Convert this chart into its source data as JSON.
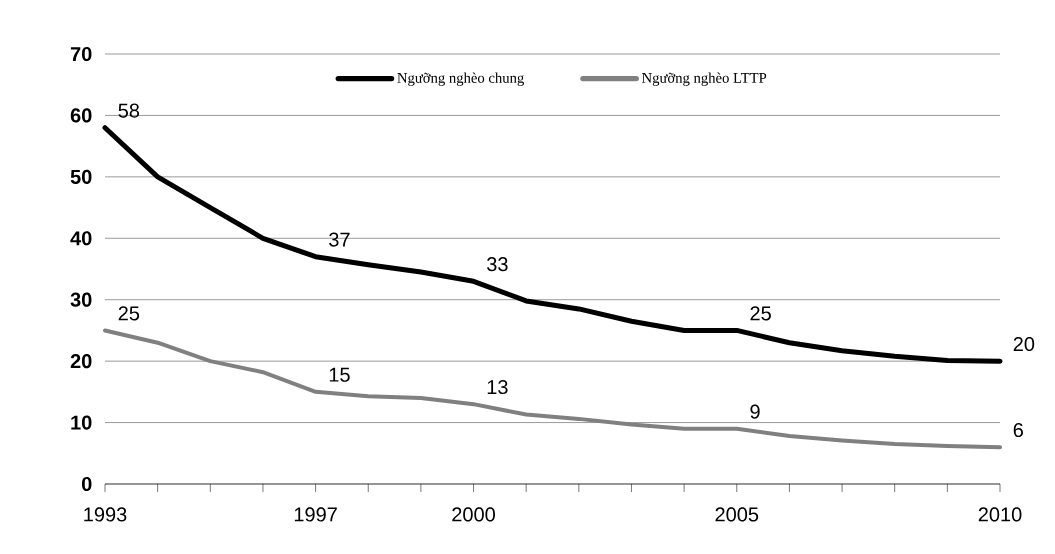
{
  "chart_data": {
    "type": "line",
    "x": [
      1993,
      1994,
      1995,
      1996,
      1997,
      1998,
      1999,
      2000,
      2001,
      2002,
      2003,
      2004,
      2005,
      2006,
      2007,
      2008,
      2009,
      2010
    ],
    "series": [
      {
        "name": "Ngưỡng nghèo chung",
        "color": "#000000",
        "values": [
          58,
          50,
          45,
          40,
          37,
          35.7,
          34.5,
          33,
          29.8,
          28.5,
          26.5,
          25,
          25,
          23,
          21.7,
          20.8,
          20.1,
          20
        ]
      },
      {
        "name": "Ngưỡng nghèo LTTP",
        "color": "#808080",
        "values": [
          25,
          23,
          20,
          18.2,
          15,
          14.3,
          14,
          13,
          11.3,
          10.6,
          9.7,
          9,
          9,
          7.8,
          7.1,
          6.5,
          6.2,
          6
        ]
      }
    ],
    "annotations": [
      {
        "text": "58",
        "x": 1993,
        "y": 58
      },
      {
        "text": "37",
        "x": 1997,
        "y": 37
      },
      {
        "text": "33",
        "x": 2000,
        "y": 33
      },
      {
        "text": "25",
        "x": 2005,
        "y": 25
      },
      {
        "text": "20",
        "x": 2010,
        "y": 20
      },
      {
        "text": "25",
        "x": 1993,
        "y": 25
      },
      {
        "text": "15",
        "x": 1997,
        "y": 15
      },
      {
        "text": "13",
        "x": 2000,
        "y": 13
      },
      {
        "text": "9",
        "x": 2005,
        "y": 9
      },
      {
        "text": "6",
        "x": 2010,
        "y": 6
      }
    ],
    "xlim": [
      1993,
      2010
    ],
    "xticks": [
      1993,
      {
        "value": 1994,
        "label": null
      },
      {
        "value": 1995,
        "label": null
      },
      {
        "value": 1996,
        "label": null
      },
      1997,
      {
        "value": 1998,
        "label": null
      },
      {
        "value": 1999,
        "label": null
      },
      2000,
      {
        "value": 2001,
        "label": null
      },
      {
        "value": 2002,
        "label": null
      },
      {
        "value": 2003,
        "label": null
      },
      {
        "value": 2004,
        "label": null
      },
      2005,
      {
        "value": 2006,
        "label": null
      },
      {
        "value": 2007,
        "label": null
      },
      {
        "value": 2008,
        "label": null
      },
      {
        "value": 2009,
        "label": null
      },
      2010
    ],
    "ylim": [
      0,
      70
    ],
    "yticks": [
      0,
      10,
      20,
      30,
      40,
      50,
      60,
      70
    ],
    "grid": "y",
    "legend": "top",
    "marker": "none",
    "line_style": "solid"
  }
}
